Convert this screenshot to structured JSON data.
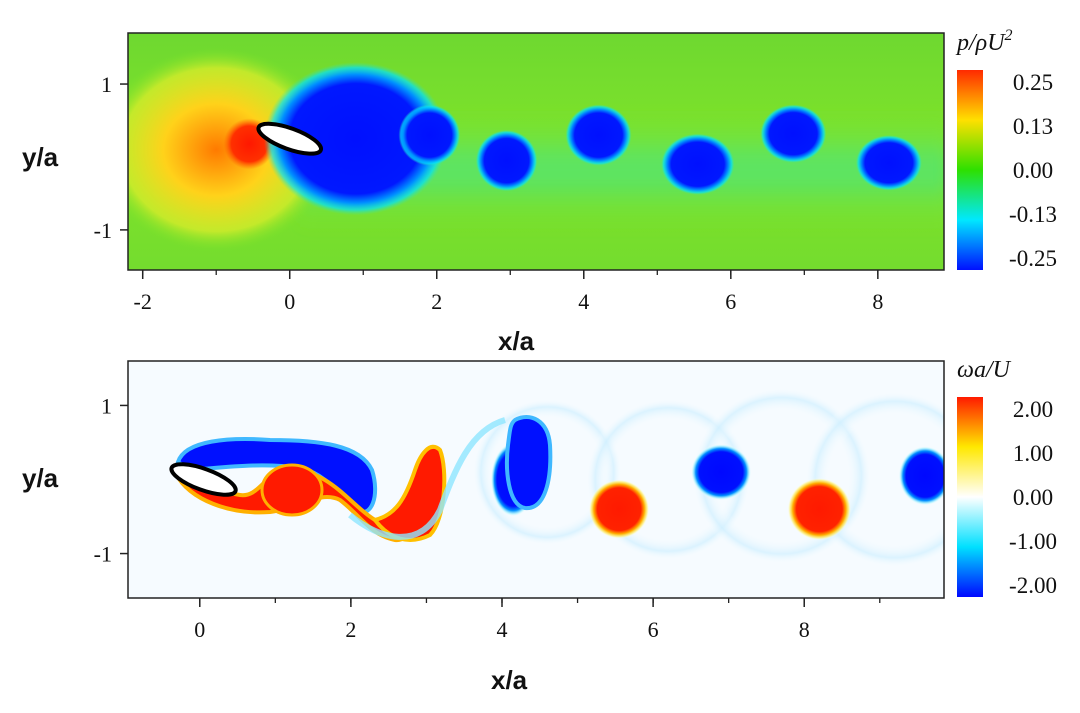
{
  "chart_data": [
    {
      "type": "heatmap",
      "field": "pressure",
      "colorbar_title": "p/ρU²",
      "colorbar_ticks": [
        "0.25",
        "0.13",
        "0.00",
        "-0.13",
        "-0.25"
      ],
      "colorbar_colors": [
        "#ff2a00",
        "#ffe000",
        "#2ee000",
        "#00e8ff",
        "#0010ff"
      ],
      "background_color": "#7ce428",
      "xlabel": "x/a",
      "ylabel": "y/a",
      "xticks": [
        "-2",
        "0",
        "2",
        "4",
        "6",
        "8"
      ],
      "yticks": [
        "1",
        "-1"
      ],
      "xlim": [
        -2.2,
        8.9
      ],
      "ylim": [
        -1.55,
        1.7
      ],
      "body": {
        "x": 0.0,
        "y": 0.25,
        "major_radius": 0.45,
        "minor_radius": 0.15,
        "angle_deg": 20
      },
      "features": [
        {
          "kind": "high",
          "x": -1.0,
          "y": 0.1,
          "rx": 1.6,
          "ry": 1.4,
          "color": "#e8ee2a"
        },
        {
          "kind": "high",
          "x": -0.55,
          "y": 0.18,
          "rx": 0.35,
          "ry": 0.35,
          "color": "#ff2a00"
        },
        {
          "kind": "low",
          "x": 0.9,
          "y": 0.25,
          "rx": 1.25,
          "ry": 1.05,
          "color": "#0010ff"
        },
        {
          "kind": "low",
          "x": 1.9,
          "y": 0.3,
          "rx": 0.42,
          "ry": 0.42,
          "color": "#0010ff"
        },
        {
          "kind": "low",
          "x": 2.95,
          "y": -0.05,
          "rx": 0.42,
          "ry": 0.42,
          "color": "#0010ff"
        },
        {
          "kind": "low",
          "x": 4.2,
          "y": 0.3,
          "rx": 0.45,
          "ry": 0.42,
          "color": "#0010ff"
        },
        {
          "kind": "low",
          "x": 5.55,
          "y": -0.1,
          "rx": 0.5,
          "ry": 0.42,
          "color": "#0010ff"
        },
        {
          "kind": "low",
          "x": 6.85,
          "y": 0.32,
          "rx": 0.45,
          "ry": 0.4,
          "color": "#0010ff"
        },
        {
          "kind": "low",
          "x": 8.15,
          "y": -0.08,
          "rx": 0.45,
          "ry": 0.38,
          "color": "#0010ff"
        }
      ]
    },
    {
      "type": "heatmap",
      "field": "vorticity",
      "colorbar_title": "ωa/U",
      "colorbar_ticks": [
        "2.00",
        "1.00",
        "0.00",
        "-1.00",
        "-2.00"
      ],
      "colorbar_colors": [
        "#ff1a00",
        "#ffe800",
        "#ffffff",
        "#00e0ff",
        "#0008ff"
      ],
      "background_color": "#f6fbff",
      "xlabel": "x/a",
      "ylabel": "y/a",
      "xticks": [
        "0",
        "2",
        "4",
        "6",
        "8"
      ],
      "yticks": [
        "1",
        "-1"
      ],
      "xlim": [
        -0.95,
        9.85
      ],
      "ylim": [
        -1.6,
        1.6
      ],
      "body": {
        "x": 0.05,
        "y": 0.0,
        "major_radius": 0.45,
        "minor_radius": 0.15,
        "angle_deg": 20
      },
      "features": [
        {
          "kind": "ring",
          "x": 4.6,
          "y": 0.1,
          "rx": 1.0,
          "ry": 1.0,
          "color": "#d8f4ff"
        },
        {
          "kind": "ring",
          "x": 6.2,
          "y": 0.0,
          "rx": 1.1,
          "ry": 1.1,
          "color": "#fff9cc"
        },
        {
          "kind": "ring",
          "x": 7.7,
          "y": 0.05,
          "rx": 1.2,
          "ry": 1.2,
          "color": "#dff6ff"
        },
        {
          "kind": "ring",
          "x": 9.2,
          "y": 0.0,
          "rx": 1.2,
          "ry": 1.2,
          "color": "#fffbd6"
        },
        {
          "kind": "neg",
          "x": 4.15,
          "y": 0.0,
          "rx": 0.3,
          "ry": 0.5,
          "color": "#0008ff"
        },
        {
          "kind": "pos",
          "x": 5.55,
          "y": -0.4,
          "rx": 0.4,
          "ry": 0.4,
          "color": "#ff1a00"
        },
        {
          "kind": "neg",
          "x": 6.9,
          "y": 0.1,
          "rx": 0.4,
          "ry": 0.38,
          "color": "#0008ff"
        },
        {
          "kind": "pos",
          "x": 8.2,
          "y": -0.4,
          "rx": 0.42,
          "ry": 0.42,
          "color": "#ff1a00"
        },
        {
          "kind": "neg",
          "x": 9.6,
          "y": 0.05,
          "rx": 0.35,
          "ry": 0.4,
          "color": "#0008ff"
        }
      ]
    }
  ]
}
